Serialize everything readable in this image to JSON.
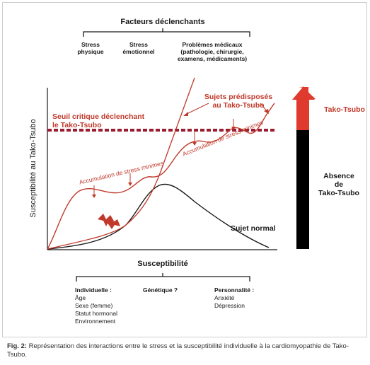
{
  "triggers": {
    "title": "Facteurs déclenchants",
    "items": [
      {
        "line1": "Stress",
        "line2": "physique"
      },
      {
        "line1": "Stress",
        "line2": "émotionnel"
      },
      {
        "line1": "Problèmes médicaux",
        "line2": "(pathologie, chirurgie,",
        "line3": "examens, médicaments)"
      }
    ]
  },
  "axes": {
    "y_label": "Susceptibilité au Tako-Tsubo"
  },
  "labels": {
    "threshold_line1": "Seuil critique déclenchant",
    "threshold_line2": "le Tako-Tsubo",
    "predisposed_line1": "Sujets prédisposés",
    "predisposed_line2": "au Tako-Tsubo",
    "accum_1": "Accumulation de stress minimes",
    "accum_2": "Accumulation de stress minimes",
    "normal_subject": "Sujet normal"
  },
  "side_bar": {
    "top_label": "Tako-Tsubo",
    "bottom_line1": "Absence",
    "bottom_line2": "de",
    "bottom_line3": "Tako-Tsubo",
    "colors": {
      "top": "#e03a2e",
      "bottom": "#000000"
    }
  },
  "susceptibility": {
    "title": "Susceptibilité",
    "individual": {
      "title": "Individuelle :",
      "items": [
        "Âge",
        "Sexe (femme)",
        "Statut hormonal",
        "Environnement"
      ]
    },
    "genetic": {
      "title": "Génétique ?"
    },
    "personality": {
      "title": "Personnalité :",
      "items": [
        "Anxiété",
        "Dépression"
      ]
    }
  },
  "caption": {
    "lead": "Fig. 2:",
    "text": " Représentation des interactions entre le stress et la susceptibilité individuelle à la cardiomyopa­thie de Tako-Tsubo."
  },
  "colors": {
    "accent_red": "#c0392b",
    "threshold": "#9b1b30",
    "text_dark": "#1a1a1a"
  }
}
